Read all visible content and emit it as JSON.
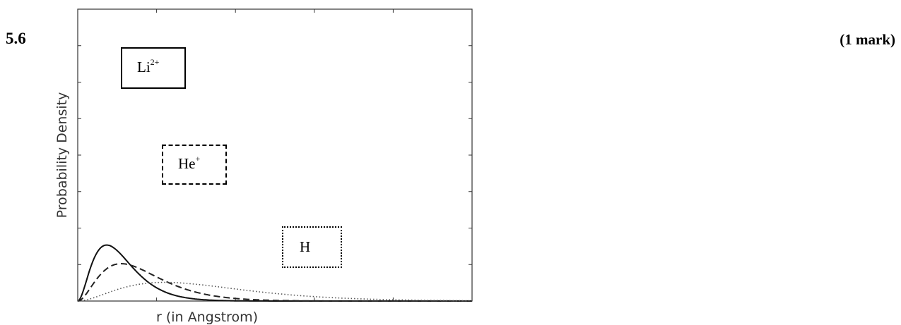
{
  "question": {
    "number": "5.6",
    "marks": "(1 mark)"
  },
  "chart_data": {
    "type": "line",
    "xlabel": "r (in Angstrom)",
    "ylabel": "Probability Density",
    "xlim": [
      0,
      2.4
    ],
    "ylim": [
      0,
      8
    ],
    "x_tick_count": 5,
    "y_tick_count": 8,
    "tick_labels_shown": false,
    "grid": false,
    "series": [
      {
        "name": "Li",
        "name_sup": "2+",
        "line_style": "solid",
        "Z": 3,
        "color": "#111111"
      },
      {
        "name": "He",
        "name_sup": "+",
        "line_style": "dashed",
        "Z": 2,
        "color": "#222222"
      },
      {
        "name": "H",
        "name_sup": "",
        "line_style": "dotted",
        "Z": 1,
        "color": "#555555"
      }
    ]
  }
}
